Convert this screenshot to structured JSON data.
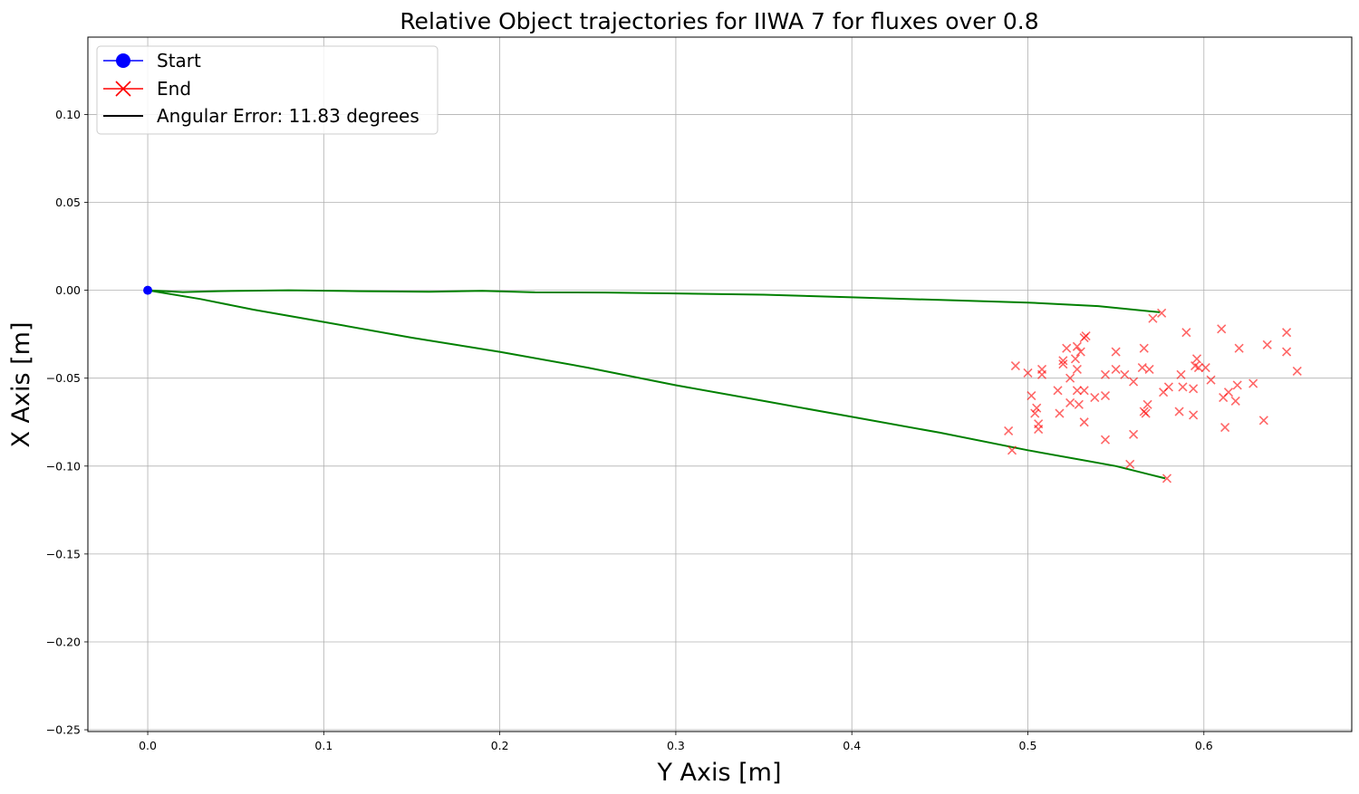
{
  "chart_data": {
    "type": "scatter",
    "title": "Relative Object trajectories for IIWA 7 for fluxes over 0.8",
    "xlabel": "Y Axis [m]",
    "ylabel": "X Axis [m]",
    "xlim": [
      -0.034,
      0.684
    ],
    "ylim": [
      -0.251,
      0.144
    ],
    "grid": true,
    "legend_position": "top-left",
    "xticks": [
      {
        "value": 0.0,
        "label": "0.0"
      },
      {
        "value": 0.1,
        "label": "0.1"
      },
      {
        "value": 0.2,
        "label": "0.2"
      },
      {
        "value": 0.3,
        "label": "0.3"
      },
      {
        "value": 0.4,
        "label": "0.4"
      },
      {
        "value": 0.5,
        "label": "0.5"
      },
      {
        "value": 0.6,
        "label": "0.6"
      }
    ],
    "yticks": [
      {
        "value": 0.1,
        "label": "0.10"
      },
      {
        "value": 0.05,
        "label": "0.05"
      },
      {
        "value": 0.0,
        "label": "0.00"
      },
      {
        "value": -0.05,
        "label": "−0.05"
      },
      {
        "value": -0.1,
        "label": "−0.10"
      },
      {
        "value": -0.15,
        "label": "−0.15"
      },
      {
        "value": -0.2,
        "label": "−0.20"
      },
      {
        "value": -0.25,
        "label": "−0.25"
      }
    ],
    "legend": [
      {
        "label": "Start",
        "color": "#0000ff",
        "marker": "circle"
      },
      {
        "label": "End",
        "color": "#ff0000",
        "marker": "x"
      },
      {
        "label": "Angular Error: 11.83 degrees",
        "color": "#000000",
        "marker": "line"
      }
    ],
    "start_point": {
      "x": 0.0,
      "y": 0.0,
      "color": "#0000ff"
    },
    "trajectories": [
      {
        "color": "#008000",
        "points": [
          [
            0,
            0
          ],
          [
            0.02,
            -0.001
          ],
          [
            0.04,
            -0.0005
          ],
          [
            0.08,
            0.0
          ],
          [
            0.12,
            -0.0005
          ],
          [
            0.16,
            -0.0008
          ],
          [
            0.19,
            -0.0003
          ],
          [
            0.22,
            -0.0012
          ],
          [
            0.26,
            -0.0013
          ],
          [
            0.3,
            -0.0018
          ],
          [
            0.35,
            -0.0025
          ],
          [
            0.4,
            -0.004
          ],
          [
            0.45,
            -0.0055
          ],
          [
            0.5,
            -0.007
          ],
          [
            0.54,
            -0.009
          ],
          [
            0.575,
            -0.0125
          ]
        ]
      },
      {
        "color": "#008000",
        "points": [
          [
            0,
            0
          ],
          [
            0.03,
            -0.005
          ],
          [
            0.06,
            -0.011
          ],
          [
            0.1,
            -0.018
          ],
          [
            0.15,
            -0.027
          ],
          [
            0.2,
            -0.035
          ],
          [
            0.25,
            -0.044
          ],
          [
            0.3,
            -0.054
          ],
          [
            0.35,
            -0.063
          ],
          [
            0.4,
            -0.072
          ],
          [
            0.45,
            -0.081
          ],
          [
            0.5,
            -0.091
          ],
          [
            0.55,
            -0.1
          ],
          [
            0.578,
            -0.107
          ]
        ]
      }
    ],
    "end_points": {
      "color": "#ff0000",
      "alpha": 0.6,
      "points": [
        [
          0.571,
          -0.016
        ],
        [
          0.576,
          -0.013
        ],
        [
          0.59,
          -0.024
        ],
        [
          0.61,
          -0.022
        ],
        [
          0.647,
          -0.024
        ],
        [
          0.62,
          -0.033
        ],
        [
          0.636,
          -0.031
        ],
        [
          0.647,
          -0.035
        ],
        [
          0.653,
          -0.046
        ],
        [
          0.533,
          -0.026
        ],
        [
          0.532,
          -0.027
        ],
        [
          0.528,
          -0.032
        ],
        [
          0.522,
          -0.033
        ],
        [
          0.53,
          -0.035
        ],
        [
          0.527,
          -0.039
        ],
        [
          0.52,
          -0.04
        ],
        [
          0.52,
          -0.042
        ],
        [
          0.493,
          -0.043
        ],
        [
          0.55,
          -0.035
        ],
        [
          0.566,
          -0.033
        ],
        [
          0.528,
          -0.045
        ],
        [
          0.508,
          -0.045
        ],
        [
          0.508,
          -0.048
        ],
        [
          0.5,
          -0.047
        ],
        [
          0.524,
          -0.05
        ],
        [
          0.544,
          -0.048
        ],
        [
          0.55,
          -0.045
        ],
        [
          0.555,
          -0.048
        ],
        [
          0.56,
          -0.052
        ],
        [
          0.565,
          -0.044
        ],
        [
          0.569,
          -0.045
        ],
        [
          0.587,
          -0.048
        ],
        [
          0.596,
          -0.039
        ],
        [
          0.595,
          -0.043
        ],
        [
          0.597,
          -0.044
        ],
        [
          0.601,
          -0.044
        ],
        [
          0.604,
          -0.051
        ],
        [
          0.577,
          -0.058
        ],
        [
          0.58,
          -0.055
        ],
        [
          0.588,
          -0.055
        ],
        [
          0.594,
          -0.056
        ],
        [
          0.611,
          -0.061
        ],
        [
          0.614,
          -0.058
        ],
        [
          0.618,
          -0.063
        ],
        [
          0.619,
          -0.054
        ],
        [
          0.628,
          -0.053
        ],
        [
          0.502,
          -0.06
        ],
        [
          0.517,
          -0.057
        ],
        [
          0.528,
          -0.057
        ],
        [
          0.532,
          -0.057
        ],
        [
          0.538,
          -0.061
        ],
        [
          0.544,
          -0.06
        ],
        [
          0.524,
          -0.064
        ],
        [
          0.529,
          -0.065
        ],
        [
          0.505,
          -0.067
        ],
        [
          0.504,
          -0.07
        ],
        [
          0.518,
          -0.07
        ],
        [
          0.566,
          -0.069
        ],
        [
          0.568,
          -0.065
        ],
        [
          0.567,
          -0.07
        ],
        [
          0.586,
          -0.069
        ],
        [
          0.594,
          -0.071
        ],
        [
          0.506,
          -0.076
        ],
        [
          0.506,
          -0.079
        ],
        [
          0.532,
          -0.075
        ],
        [
          0.612,
          -0.078
        ],
        [
          0.634,
          -0.074
        ],
        [
          0.489,
          -0.08
        ],
        [
          0.491,
          -0.091
        ],
        [
          0.544,
          -0.085
        ],
        [
          0.56,
          -0.082
        ],
        [
          0.558,
          -0.099
        ],
        [
          0.579,
          -0.107
        ]
      ]
    }
  }
}
